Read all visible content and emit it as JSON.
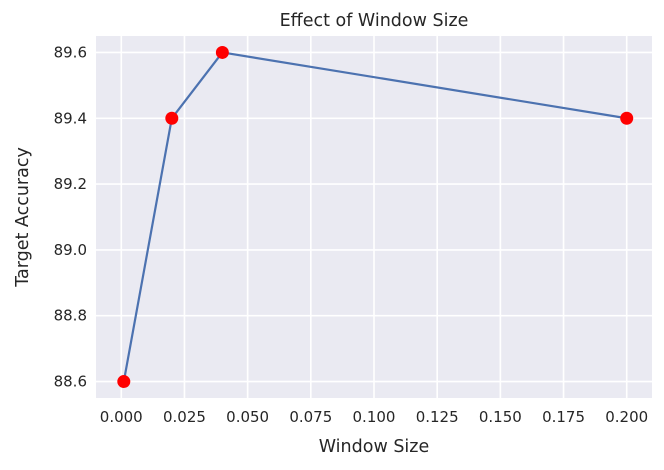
{
  "chart_data": {
    "type": "line",
    "title": "Effect of Window Size",
    "xlabel": "Window Size",
    "ylabel": "Target Accuracy",
    "xlim": [
      -0.01,
      0.21
    ],
    "ylim": [
      88.55,
      89.65
    ],
    "xticks": [
      0.0,
      0.025,
      0.05,
      0.075,
      0.1,
      0.125,
      0.15,
      0.175,
      0.2
    ],
    "xtick_labels": [
      "0.000",
      "0.025",
      "0.050",
      "0.075",
      "0.100",
      "0.125",
      "0.150",
      "0.175",
      "0.200"
    ],
    "yticks": [
      88.6,
      88.8,
      89.0,
      89.2,
      89.4,
      89.6
    ],
    "ytick_labels": [
      "88.6",
      "88.8",
      "89.0",
      "89.2",
      "89.4",
      "89.6"
    ],
    "grid": true,
    "series": [
      {
        "x": [
          0.001,
          0.02,
          0.04,
          0.2
        ],
        "y": [
          88.6,
          89.4,
          89.6,
          89.4
        ],
        "line_color": "#4c72b0",
        "marker_color": "#ff0000"
      }
    ],
    "colors": {
      "background": "#eaeaf2",
      "grid": "#ffffff",
      "text": "#262626"
    }
  }
}
